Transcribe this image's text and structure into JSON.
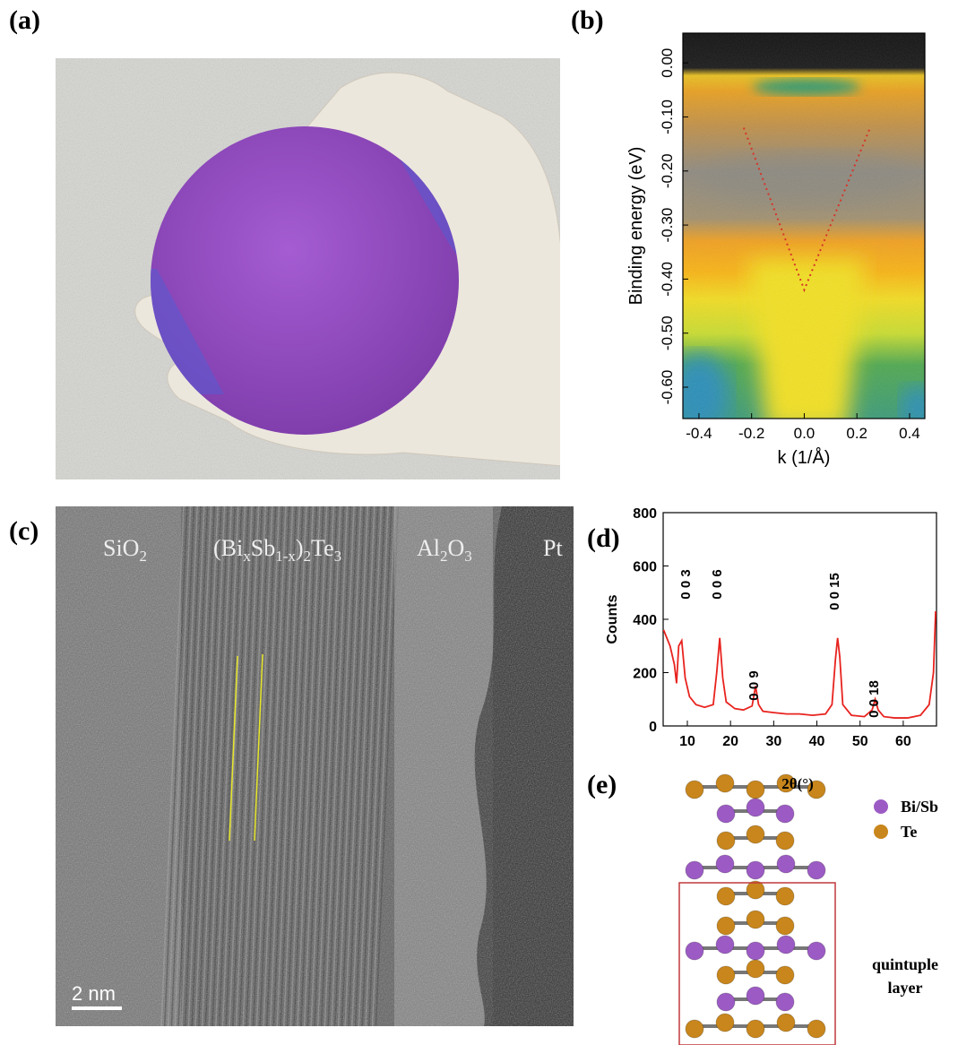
{
  "panels": [
    {
      "label": "(a)"
    },
    {
      "label": "(b)"
    },
    {
      "label": "(c)",
      "layers": [
        [
          "SiO",
          "2"
        ],
        [
          "(Bi",
          "x",
          "Sb",
          "1-x",
          ")",
          "2",
          "Te",
          "3"
        ],
        [
          "Al",
          "2",
          "O",
          "3"
        ],
        [
          "Pt"
        ]
      ],
      "scale_bar": "2 nm"
    },
    {
      "label": "(d)"
    },
    {
      "label": "(e)",
      "legend": [
        {
          "name": "Bi/Sb",
          "color": "#9c5bc4"
        },
        {
          "name": "Te",
          "color": "#c8861c"
        }
      ],
      "box_label": [
        "quintuple",
        "layer"
      ],
      "box_color": "#c0393b"
    }
  ],
  "chart_data": [
    {
      "type": "line",
      "xlabel": "k (1/Å)",
      "ylabel": "Binding energy (eV)",
      "x": [
        -0.23,
        0,
        0.25
      ],
      "series": [
        {
          "color": "#d6352a",
          "linestyle": "dotted",
          "values": [
            -0.12,
            -0.42,
            -0.12
          ]
        }
      ],
      "xlim": [
        -0.461,
        0.458
      ],
      "ylim": [
        -0.658,
        0.055
      ],
      "xticks": [
        -0.4,
        -0.2,
        {
          "value": 0,
          "label": "0.0"
        },
        0.2,
        0.4
      ],
      "yticks": [
        {
          "value": 0,
          "label": "0.00"
        },
        {
          "value": -0.1,
          "label": "-0.10"
        },
        {
          "value": -0.2,
          "label": "-0.20"
        },
        {
          "value": -0.3,
          "label": "-0.30"
        },
        {
          "value": -0.4,
          "label": "-0.40"
        },
        {
          "value": -0.5,
          "label": "-0.50"
        },
        {
          "value": -0.6,
          "label": "-0.60"
        }
      ]
    },
    {
      "type": "line",
      "xlabel": "2θ(°)",
      "ylabel": "Counts",
      "x": [
        4.5,
        6,
        7,
        7.5,
        8,
        8.7,
        9.5,
        10.5,
        12,
        14,
        16,
        16.8,
        17.5,
        18.2,
        19,
        21,
        23,
        25,
        25.8,
        26.5,
        27.5,
        30,
        33,
        36,
        39,
        42,
        43.5,
        44.3,
        44.8,
        45.3,
        46,
        48,
        51,
        52.8,
        53.5,
        54.2,
        55.5,
        58,
        61,
        64,
        66,
        67,
        67.5
      ],
      "series": [
        {
          "color": "#e8231f",
          "linestyle": "solid",
          "values": [
            360,
            300,
            230,
            160,
            300,
            320,
            180,
            110,
            80,
            70,
            80,
            200,
            330,
            180,
            90,
            65,
            60,
            75,
            150,
            80,
            55,
            50,
            45,
            45,
            40,
            45,
            80,
            250,
            330,
            260,
            80,
            40,
            35,
            60,
            100,
            60,
            35,
            30,
            30,
            40,
            80,
            200,
            430
          ]
        }
      ],
      "xlim": [
        4.4,
        67.7
      ],
      "ylim": [
        0,
        800
      ],
      "xticks": [
        10,
        20,
        30,
        40,
        50,
        60
      ],
      "yticks": [
        0,
        200,
        400,
        600,
        800
      ],
      "annotations": [
        "0 0 3",
        "0 0 6",
        "0 0 9",
        "0 0 15",
        "0 0 18"
      ]
    }
  ]
}
